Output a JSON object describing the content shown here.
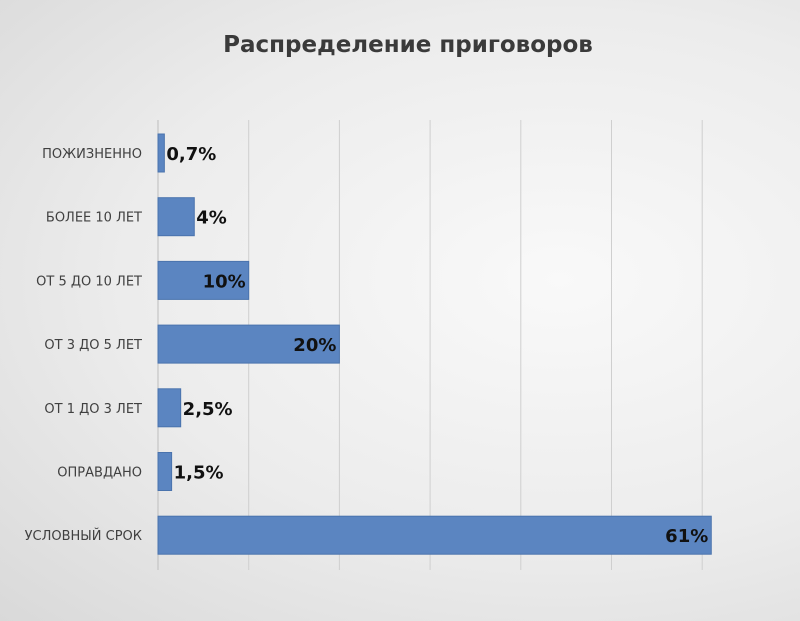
{
  "chart_data": {
    "type": "bar",
    "orientation": "horizontal",
    "title": "Распределение приговоров",
    "categories": [
      "ПОЖИЗНЕННО",
      "БОЛЕЕ 10 ЛЕТ",
      "ОТ 5 ДО 10 ЛЕТ",
      "ОТ 3 ДО 5 ЛЕТ",
      "ОТ 1 ДО 3 ЛЕТ",
      "ОПРАВДАНО",
      "УСЛОВНЫЙ СРОК"
    ],
    "values": [
      0.7,
      4,
      10,
      20,
      2.5,
      1.5,
      61
    ],
    "data_labels": [
      "0,7%",
      "4%",
      "10%",
      "20%",
      "2,5%",
      "1,5%",
      "61%"
    ],
    "xlim": [
      0,
      70
    ],
    "grid": true,
    "legend": "none",
    "colors": {
      "bar": "#5b85c1",
      "bar_stroke": "#4a73ad",
      "grid": "#cfcfcf"
    }
  }
}
